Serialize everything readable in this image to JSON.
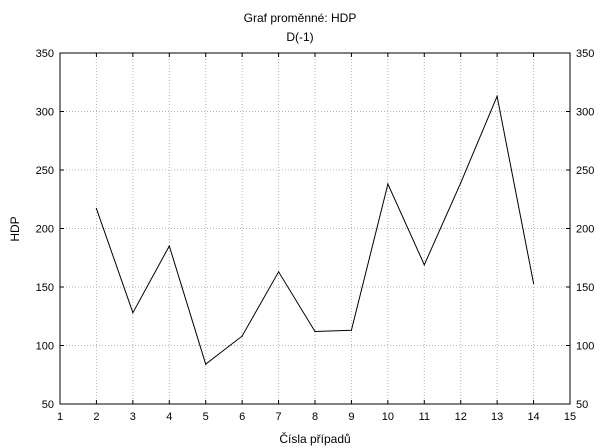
{
  "chart_data": {
    "type": "line",
    "title": "Graf proměnné: HDP",
    "subtitle": "D(-1)",
    "xlabel": "Čísla případů",
    "ylabel": "HDP",
    "xlim": [
      1,
      15
    ],
    "ylim": [
      50,
      350
    ],
    "x_ticks": [
      "1",
      "2",
      "3",
      "4",
      "5",
      "6",
      "7",
      "8",
      "9",
      "10",
      "11",
      "12",
      "13",
      "14",
      "15"
    ],
    "y_ticks": [
      "50",
      "100",
      "150",
      "200",
      "250",
      "300",
      "350"
    ],
    "grid": true,
    "series": [
      {
        "x": [
          2,
          3,
          4,
          5,
          6,
          7,
          8,
          9,
          10,
          11,
          12,
          13,
          14
        ],
        "values": [
          217,
          128,
          185,
          84,
          108,
          163,
          112,
          113,
          238,
          169,
          239,
          313,
          153
        ]
      }
    ],
    "colors": {
      "line": "#000000",
      "grid": "#b4b4b4",
      "axis": "#000000",
      "background": "#ffffff"
    }
  }
}
